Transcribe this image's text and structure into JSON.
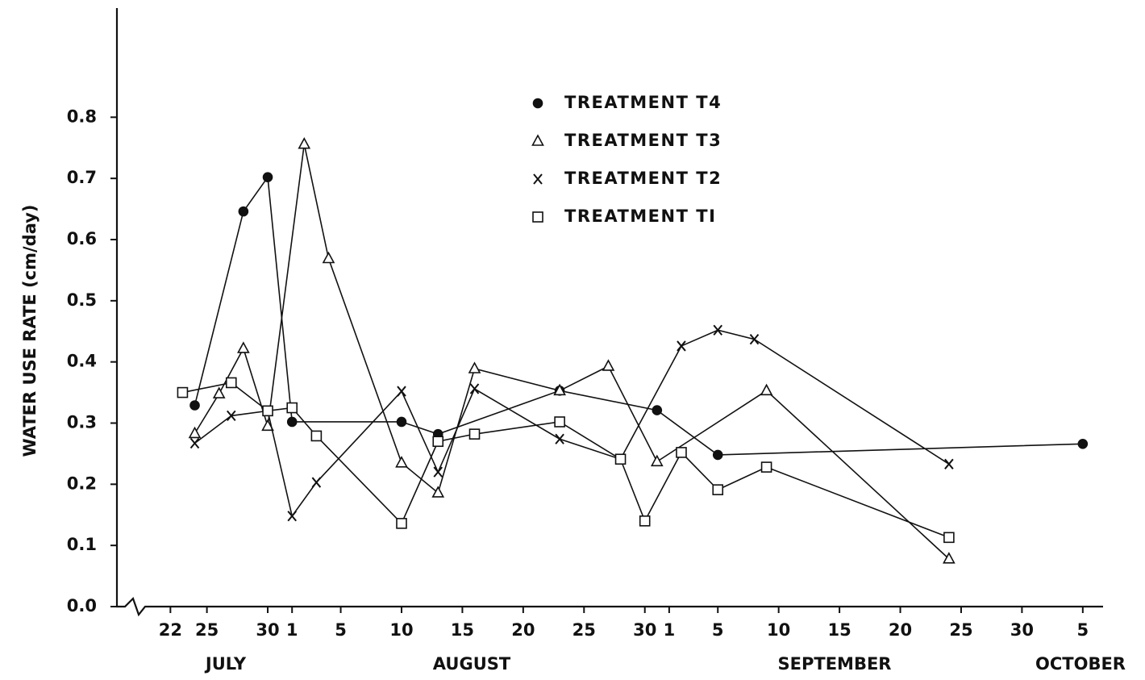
{
  "chart_data": {
    "type": "line",
    "y_label": "WATER USE RATE (cm/day)",
    "x_group_labels": [
      "JULY",
      "AUGUST",
      "SEPTEMBER",
      "OCTOBER"
    ],
    "xlim": [
      "07-18",
      "10-07"
    ],
    "xticks": [
      {
        "value": "07-22",
        "label": "22"
      },
      {
        "value": "07-25",
        "label": "25"
      },
      {
        "value": "07-30",
        "label": "30"
      },
      {
        "value": "08-01",
        "label": "1"
      },
      {
        "value": "08-05",
        "label": "5"
      },
      {
        "value": "08-10",
        "label": "10"
      },
      {
        "value": "08-15",
        "label": "15"
      },
      {
        "value": "08-20",
        "label": "20"
      },
      {
        "value": "08-25",
        "label": "25"
      },
      {
        "value": "08-30",
        "label": "30"
      },
      {
        "value": "09-01",
        "label": "1"
      },
      {
        "value": "09-05",
        "label": "5"
      },
      {
        "value": "09-10",
        "label": "10"
      },
      {
        "value": "09-15",
        "label": "15"
      },
      {
        "value": "09-20",
        "label": "20"
      },
      {
        "value": "09-25",
        "label": "25"
      },
      {
        "value": "09-30",
        "label": "30"
      },
      {
        "value": "10-05",
        "label": "5"
      }
    ],
    "ylim": [
      0,
      0.9
    ],
    "yticks": [
      {
        "value": 0,
        "label": "0.0"
      },
      0.1,
      0.2,
      0.3,
      0.4,
      0.5,
      0.6,
      0.7,
      0.8
    ],
    "legend": "upper center",
    "series": [
      {
        "name": "TREATMENT T4",
        "color": "#111111",
        "marker": "circle",
        "x": [
          "07-24",
          "07-28",
          "07-30",
          "08-01",
          "08-10",
          "08-13",
          "08-23",
          "08-31",
          "09-05",
          "10-05"
        ],
        "values": [
          0.329,
          0.646,
          0.702,
          0.302,
          0.302,
          0.282,
          0.353,
          0.321,
          0.248,
          0.266
        ]
      },
      {
        "name": "TREATMENT T3",
        "color": "#111111",
        "marker": "triangle",
        "x": [
          "07-24",
          "07-26",
          "07-28",
          "07-30",
          "08-02",
          "08-04",
          "08-10",
          "08-13",
          "08-16",
          "08-23",
          "08-27",
          "08-31",
          "09-09",
          "09-24"
        ],
        "values": [
          0.283,
          0.348,
          0.422,
          0.295,
          0.756,
          0.569,
          0.235,
          0.186,
          0.389,
          0.353,
          0.393,
          0.237,
          0.353,
          0.078
        ]
      },
      {
        "name": "TREATMENT T2",
        "color": "#111111",
        "marker": "x",
        "x": [
          "07-24",
          "07-27",
          "07-30",
          "08-01",
          "08-03",
          "08-10",
          "08-13",
          "08-16",
          "08-23",
          "08-28",
          "09-02",
          "09-05",
          "09-08",
          "09-24"
        ],
        "values": [
          0.267,
          0.312,
          0.32,
          0.148,
          0.203,
          0.352,
          0.22,
          0.356,
          0.274,
          0.241,
          0.426,
          0.452,
          0.437,
          0.233
        ]
      },
      {
        "name": "TREATMENT TI",
        "color": "#111111",
        "marker": "square",
        "x": [
          "07-23",
          "07-27",
          "07-30",
          "08-01",
          "08-03",
          "08-10",
          "08-13",
          "08-16",
          "08-23",
          "08-28",
          "08-30",
          "09-02",
          "09-05",
          "09-09",
          "09-24"
        ],
        "values": [
          0.35,
          0.366,
          0.32,
          0.325,
          0.279,
          0.136,
          0.27,
          0.282,
          0.302,
          0.241,
          0.14,
          0.252,
          0.191,
          0.228,
          0.113
        ]
      }
    ]
  }
}
